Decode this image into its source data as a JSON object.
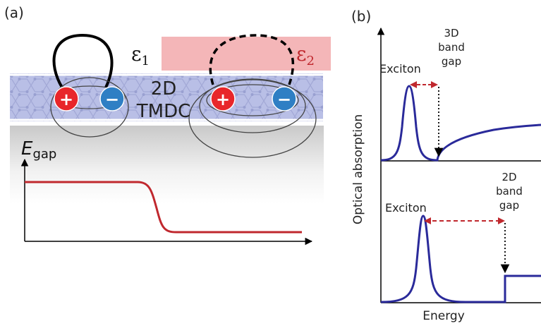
{
  "panel_a": {
    "label": "(a)",
    "eps1": "ε",
    "eps1_sub": "1",
    "eps2": "ε",
    "eps2_sub": "2",
    "layer_line1": "2D",
    "layer_line2": "TMDC",
    "plus": "+",
    "minus": "−",
    "egap_main": "E",
    "egap_sub": "gap",
    "colors": {
      "eps2_box": "#f4b6b8",
      "layer": "#b9bfe6",
      "electron": "#2f7fc4",
      "hole": "#e8262a",
      "curve": "#c0282e"
    }
  },
  "panel_b": {
    "label": "(b)",
    "top_exciton": "Exciton",
    "top_gap_line1": "3D",
    "top_gap_line2": "band",
    "top_gap_line3": "gap",
    "bottom_exciton": "Exciton",
    "bottom_gap_line1": "2D",
    "bottom_gap_line2": "band",
    "bottom_gap_line3": "gap",
    "ylabel": "Optical absorption",
    "xlabel": "Energy",
    "colors": {
      "spectrum": "#2a2a9a",
      "arrow": "#c0282e"
    }
  }
}
